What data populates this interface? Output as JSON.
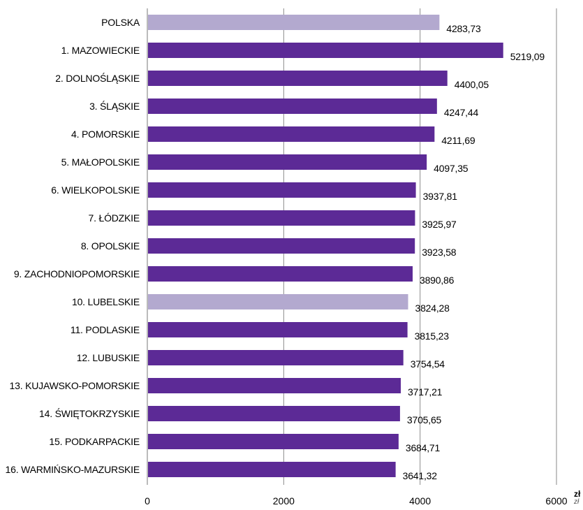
{
  "chart_data": {
    "type": "bar",
    "orientation": "horizontal",
    "categories": [
      "POLSKA",
      "1. MAZOWIECKIE",
      "2. DOLNOŚLĄSKIE",
      "3. ŚLĄSKIE",
      "4. POMORSKIE",
      "5. MAŁOPOLSKIE",
      "6. WIELKOPOLSKIE",
      "7. ŁÓDZKIE",
      "8. OPOLSKIE",
      "9. ZACHODNIOPOMORSKIE",
      "10. LUBELSKIE",
      "11. PODLASKIE",
      "12. LUBUSKIE",
      "13. KUJAWSKO-POMORSKIE",
      "14. ŚWIĘTOKRZYSKIE",
      "15. PODKARPACKIE",
      "16. WARMIŃSKO-MAZURSKIE"
    ],
    "values": [
      4283.73,
      5219.09,
      4400.05,
      4247.44,
      4211.69,
      4097.35,
      3937.81,
      3925.97,
      3923.58,
      3890.86,
      3824.28,
      3815.23,
      3754.54,
      3717.21,
      3705.65,
      3684.71,
      3641.32
    ],
    "value_labels": [
      "4283,73",
      "5219,09",
      "4400,05",
      "4247,44",
      "4211,69",
      "4097,35",
      "3937,81",
      "3925,97",
      "3923,58",
      "3890,86",
      "3824,28",
      "3815,23",
      "3754,54",
      "3717,21",
      "3705,65",
      "3684,71",
      "3641,32"
    ],
    "highlighted": [
      0,
      10
    ],
    "colors": {
      "default": "#5c2a96",
      "highlight": "#b3a9cf",
      "gridline": "#8a8a8a"
    },
    "xlim": [
      0,
      6000
    ],
    "xticks": [
      "0",
      "2000",
      "4000",
      "6000"
    ],
    "x_unit": "zł",
    "x_unit_secondary": "zł",
    "grid": true,
    "legend": "none"
  }
}
